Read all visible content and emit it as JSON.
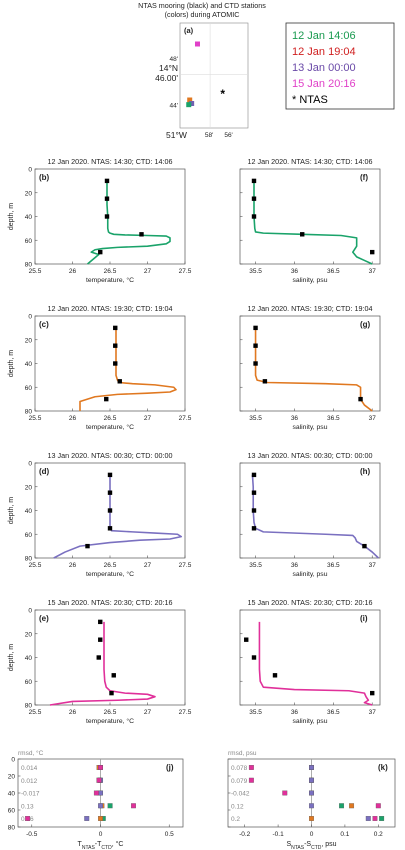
{
  "map": {
    "title_line1": "NTAS mooring (black) and CTD stations",
    "title_line2": "(colors) during ATOMIC",
    "panel_letter": "(a)",
    "xticks": [
      {
        "v": -58,
        "t": "58'"
      },
      {
        "v": -56,
        "t": "56'"
      }
    ],
    "xlabel_big": "51°W",
    "yticks": [
      {
        "v": 48,
        "t": "48'"
      },
      {
        "v": 44,
        "t": "44'"
      }
    ],
    "ylabel_big1": "14°N",
    "ylabel_big2": "46.00'",
    "xlim": [
      -61,
      -54
    ],
    "ylim": [
      42,
      51
    ],
    "stations": [
      {
        "x": -59.2,
        "y": 49.2,
        "color": "#e040c8"
      },
      {
        "x": -60.0,
        "y": 44.4,
        "color": "#e07820"
      },
      {
        "x": -59.8,
        "y": 44.1,
        "color": "#7060b0"
      },
      {
        "x": -60.1,
        "y": 44.0,
        "color": "#1aa36a"
      }
    ],
    "ntas": {
      "x": -56.6,
      "y": 44.9
    }
  },
  "legend": [
    {
      "text": "12 Jan 14:06",
      "color": "#1a9a50"
    },
    {
      "text": "12 Jan 19:04",
      "color": "#d02020"
    },
    {
      "text": "13 Jan 00:00",
      "color": "#6a4aa8"
    },
    {
      "text": "15 Jan 20:16",
      "color": "#e040c8"
    },
    {
      "text": "* NTAS",
      "color": "#000000"
    }
  ],
  "common": {
    "ylabel": "depth, m",
    "temp_xlabel": "temperature, °C",
    "sal_xlabel": "salinity, psu",
    "yticks": [
      0,
      20,
      40,
      60,
      80
    ],
    "temp_xticks": [
      {
        "v": 25.5,
        "t": "25.5"
      },
      {
        "v": 26,
        "t": "26"
      },
      {
        "v": 26.5,
        "t": "26.5"
      },
      {
        "v": 27,
        "t": "27"
      },
      {
        "v": 27.5,
        "t": "27.5"
      }
    ],
    "sal_xticks": [
      {
        "v": 35.5,
        "t": "35.5"
      },
      {
        "v": 36,
        "t": "36"
      },
      {
        "v": 36.5,
        "t": "36.5"
      },
      {
        "v": 37,
        "t": "37"
      }
    ]
  },
  "chart_data": [
    {
      "type": "line",
      "panel": "(b)",
      "title": "12 Jan 2020. NTAS: 14:30; CTD: 14:06",
      "color": "#1aa36a",
      "var": "temp",
      "xlim": [
        25.5,
        27.5
      ],
      "ylim": [
        80,
        0
      ],
      "profile_x": [
        26.46,
        26.46,
        26.46,
        26.47,
        26.47,
        26.48,
        26.5,
        26.55,
        26.7,
        27.0,
        27.25,
        27.3,
        27.3,
        27.25,
        27.0,
        26.6,
        26.4,
        26.3,
        26.25,
        26.35,
        26.2
      ],
      "profile_y": [
        10,
        20,
        30,
        40,
        50,
        53,
        54,
        55,
        55.5,
        56,
        56.5,
        58,
        61,
        63,
        65,
        66,
        67,
        68,
        70,
        72,
        80
      ],
      "ntas_x": [
        26.46,
        26.46,
        26.46,
        26.92,
        26.37
      ],
      "ntas_y": [
        10,
        25,
        40,
        55,
        70
      ]
    },
    {
      "type": "line",
      "panel": "(f)",
      "title": "12 Jan 2020. NTAS: 14:30; CTD: 14:06",
      "color": "#1aa36a",
      "var": "sal",
      "xlim": [
        35.3,
        37.1
      ],
      "ylim": [
        80,
        0
      ],
      "profile_x": [
        35.48,
        35.48,
        35.48,
        35.48,
        35.49,
        35.5,
        35.6,
        36.1,
        36.6,
        36.8,
        36.8,
        36.75,
        36.8,
        36.9,
        37.0
      ],
      "profile_y": [
        10,
        20,
        30,
        40,
        50,
        53,
        54,
        55,
        56,
        58,
        65,
        70,
        74,
        77,
        80
      ],
      "ntas_x": [
        35.48,
        35.48,
        35.48,
        36.1,
        37.0
      ],
      "ntas_y": [
        10,
        25,
        40,
        55,
        70
      ]
    },
    {
      "type": "line",
      "panel": "(c)",
      "title": "12 Jan 2020. NTAS: 19:30; CTD: 19:04",
      "color": "#e07820",
      "var": "temp",
      "xlim": [
        25.5,
        27.5
      ],
      "ylim": [
        80,
        0
      ],
      "profile_x": [
        26.58,
        26.58,
        26.58,
        26.58,
        26.58,
        26.6,
        26.62,
        26.8,
        27.1,
        27.35,
        27.38,
        27.3,
        27.0,
        26.6,
        26.3,
        26.1,
        26.1
      ],
      "profile_y": [
        10,
        20,
        30,
        40,
        50,
        54,
        56,
        57,
        58,
        60,
        62,
        64,
        65,
        66,
        68,
        72,
        80
      ],
      "ntas_x": [
        26.57,
        26.57,
        26.57,
        26.63,
        26.45
      ],
      "ntas_y": [
        10,
        25,
        40,
        55,
        70
      ]
    },
    {
      "type": "line",
      "panel": "(g)",
      "title": "12 Jan 2020. NTAS: 19:30; CTD: 19:04",
      "color": "#e07820",
      "var": "sal",
      "xlim": [
        35.3,
        37.1
      ],
      "ylim": [
        80,
        0
      ],
      "profile_x": [
        35.5,
        35.5,
        35.5,
        35.5,
        35.5,
        35.52,
        35.65,
        36.4,
        36.8,
        36.85,
        36.85,
        36.85,
        36.9,
        37.0
      ],
      "profile_y": [
        10,
        20,
        30,
        40,
        50,
        54,
        56,
        57,
        58,
        60,
        65,
        70,
        75,
        80
      ],
      "ntas_x": [
        35.5,
        35.5,
        35.5,
        35.62,
        36.85
      ],
      "ntas_y": [
        10,
        25,
        40,
        55,
        70
      ]
    },
    {
      "type": "line",
      "panel": "(d)",
      "title": "13 Jan 2020. NTAS: 00:30; CTD: 00:00",
      "color": "#7a70c0",
      "var": "temp",
      "xlim": [
        25.5,
        27.5
      ],
      "ylim": [
        80,
        0
      ],
      "profile_x": [
        26.5,
        26.5,
        26.5,
        26.5,
        26.5,
        26.5,
        26.52,
        26.8,
        27.1,
        27.4,
        27.45,
        27.3,
        26.9,
        26.5,
        26.1,
        25.9,
        25.75
      ],
      "profile_y": [
        10,
        20,
        30,
        40,
        50,
        55,
        57,
        58,
        59,
        60,
        62,
        64,
        65,
        67,
        70,
        75,
        80
      ],
      "ntas_x": [
        26.5,
        26.5,
        26.5,
        26.5,
        26.2
      ],
      "ntas_y": [
        10,
        25,
        40,
        55,
        70
      ]
    },
    {
      "type": "line",
      "panel": "(h)",
      "title": "13 Jan 2020. NTAS: 00:30; CTD: 00:00",
      "color": "#7a70c0",
      "var": "sal",
      "xlim": [
        35.3,
        37.1
      ],
      "ylim": [
        80,
        0
      ],
      "profile_x": [
        35.46,
        35.47,
        35.47,
        35.47,
        35.48,
        35.5,
        35.6,
        36.4,
        36.75,
        36.78,
        36.8,
        36.9,
        37.0,
        37.08
      ],
      "profile_y": [
        10,
        20,
        30,
        40,
        50,
        55,
        58,
        60,
        61,
        63,
        66,
        70,
        75,
        80
      ],
      "ntas_x": [
        35.48,
        35.48,
        35.48,
        35.48,
        36.9
      ],
      "ntas_y": [
        10,
        25,
        40,
        55,
        70
      ]
    },
    {
      "type": "line",
      "panel": "(e)",
      "title": "15 Jan 2020. NTAS: 20:30; CTD: 20:16",
      "color": "#e0309a",
      "var": "temp",
      "xlim": [
        25.5,
        27.5
      ],
      "ylim": [
        80,
        0
      ],
      "profile_x": [
        26.42,
        26.42,
        26.42,
        26.42,
        26.42,
        26.43,
        26.45,
        26.5,
        26.7,
        27.0,
        27.1,
        27.0,
        26.6,
        26.0,
        25.7
      ],
      "profile_y": [
        10,
        20,
        30,
        40,
        50,
        60,
        65,
        68,
        70,
        71,
        73,
        75,
        76,
        77,
        80
      ],
      "ntas_x": [
        26.37,
        26.37,
        26.35,
        26.55,
        26.52
      ],
      "ntas_y": [
        10,
        25,
        40,
        55,
        70
      ]
    },
    {
      "type": "line",
      "panel": "(i)",
      "title": "15 Jan 2020. NTAS: 20:30; CTD: 20:16",
      "color": "#e0309a",
      "var": "sal",
      "xlim": [
        35.3,
        37.1
      ],
      "ylim": [
        80,
        0
      ],
      "profile_x": [
        35.55,
        35.55,
        35.55,
        35.55,
        35.55,
        35.56,
        35.6,
        36.0,
        36.7,
        36.9,
        36.92,
        36.95,
        36.9,
        37.0
      ],
      "profile_y": [
        10,
        20,
        30,
        40,
        50,
        60,
        65,
        67,
        68,
        70,
        73,
        76,
        78,
        80
      ],
      "ntas_x": [
        35.38,
        35.48,
        35.75,
        37.0
      ],
      "ntas_y": [
        25,
        40,
        55,
        70
      ]
    },
    {
      "type": "scatter",
      "panel": "(j)",
      "var": "dT",
      "rmsd_label": "rmsd, °C",
      "rmsd_values": [
        "0.014",
        "0.012",
        "-0.017",
        "0.13",
        "0.26"
      ],
      "rmsd_depths": [
        10,
        25,
        40,
        55,
        70
      ],
      "xlabel": "T",
      "xlabel_sub": "NTAS",
      "xlabel_mid": "-T",
      "xlabel_sub2": "CTD",
      "xlabel_end": ", °C",
      "xticks": [
        {
          "v": -0.5,
          "t": "-0.5"
        },
        {
          "v": 0,
          "t": "0"
        },
        {
          "v": 0.5,
          "t": "0.5"
        }
      ],
      "xlim": [
        -0.6,
        0.6
      ],
      "ylim": [
        80,
        0
      ],
      "points": [
        {
          "x": 0.0,
          "y": 10,
          "c": "#1aa36a"
        },
        {
          "x": -0.01,
          "y": 10,
          "c": "#e07820"
        },
        {
          "x": 0.0,
          "y": 10,
          "c": "#7a70c0"
        },
        {
          "x": 0.0,
          "y": 10,
          "c": "#e0309a"
        },
        {
          "x": 0.0,
          "y": 25,
          "c": "#1aa36a"
        },
        {
          "x": -0.01,
          "y": 25,
          "c": "#e07820"
        },
        {
          "x": 0.0,
          "y": 25,
          "c": "#7a70c0"
        },
        {
          "x": -0.01,
          "y": 25,
          "c": "#e0309a"
        },
        {
          "x": 0.0,
          "y": 40,
          "c": "#1aa36a"
        },
        {
          "x": -0.01,
          "y": 40,
          "c": "#e07820"
        },
        {
          "x": 0.0,
          "y": 40,
          "c": "#7a70c0"
        },
        {
          "x": -0.03,
          "y": 40,
          "c": "#e0309a"
        },
        {
          "x": 0.07,
          "y": 55,
          "c": "#1aa36a"
        },
        {
          "x": 0.01,
          "y": 55,
          "c": "#e07820"
        },
        {
          "x": 0.0,
          "y": 55,
          "c": "#7a70c0"
        },
        {
          "x": 0.24,
          "y": 55,
          "c": "#e0309a"
        },
        {
          "x": 0.02,
          "y": 70,
          "c": "#1aa36a"
        },
        {
          "x": 0.0,
          "y": 70,
          "c": "#e07820"
        },
        {
          "x": -0.1,
          "y": 70,
          "c": "#7a70c0"
        },
        {
          "x": -0.53,
          "y": 70,
          "c": "#e0309a"
        }
      ]
    },
    {
      "type": "scatter",
      "panel": "(k)",
      "var": "dS",
      "rmsd_label": "rmsd, psu",
      "rmsd_values": [
        "0.078",
        "0.079",
        "-0.042",
        "0.12",
        "0.2"
      ],
      "rmsd_depths": [
        10,
        25,
        40,
        55,
        70
      ],
      "xlabel": "S",
      "xlabel_sub": "NTAS",
      "xlabel_mid": "-S",
      "xlabel_sub2": "CTD",
      "xlabel_end": ", psu",
      "xticks": [
        {
          "v": -0.2,
          "t": "-0.2"
        },
        {
          "v": -0.1,
          "t": "-0.1"
        },
        {
          "v": 0,
          "t": "0"
        },
        {
          "v": 0.1,
          "t": "0.1"
        },
        {
          "v": 0.2,
          "t": "0.2"
        }
      ],
      "xlim": [
        -0.25,
        0.25
      ],
      "ylim": [
        80,
        0
      ],
      "points": [
        {
          "x": 0.0,
          "y": 10,
          "c": "#1aa36a"
        },
        {
          "x": 0.0,
          "y": 10,
          "c": "#e07820"
        },
        {
          "x": 0.0,
          "y": 10,
          "c": "#7a70c0"
        },
        {
          "x": -0.18,
          "y": 10,
          "c": "#e0309a"
        },
        {
          "x": 0.0,
          "y": 25,
          "c": "#1aa36a"
        },
        {
          "x": 0.0,
          "y": 25,
          "c": "#e07820"
        },
        {
          "x": 0.0,
          "y": 25,
          "c": "#7a70c0"
        },
        {
          "x": -0.18,
          "y": 25,
          "c": "#e0309a"
        },
        {
          "x": 0.0,
          "y": 40,
          "c": "#1aa36a"
        },
        {
          "x": 0.0,
          "y": 40,
          "c": "#e07820"
        },
        {
          "x": 0.0,
          "y": 40,
          "c": "#7a70c0"
        },
        {
          "x": -0.08,
          "y": 40,
          "c": "#e0309a"
        },
        {
          "x": 0.09,
          "y": 55,
          "c": "#1aa36a"
        },
        {
          "x": 0.12,
          "y": 55,
          "c": "#e07820"
        },
        {
          "x": 0.0,
          "y": 55,
          "c": "#7a70c0"
        },
        {
          "x": 0.2,
          "y": 55,
          "c": "#e0309a"
        },
        {
          "x": 0.21,
          "y": 70,
          "c": "#1aa36a"
        },
        {
          "x": 0.0,
          "y": 70,
          "c": "#e07820"
        },
        {
          "x": 0.17,
          "y": 70,
          "c": "#7a70c0"
        },
        {
          "x": 0.19,
          "y": 70,
          "c": "#e0309a"
        }
      ]
    }
  ]
}
